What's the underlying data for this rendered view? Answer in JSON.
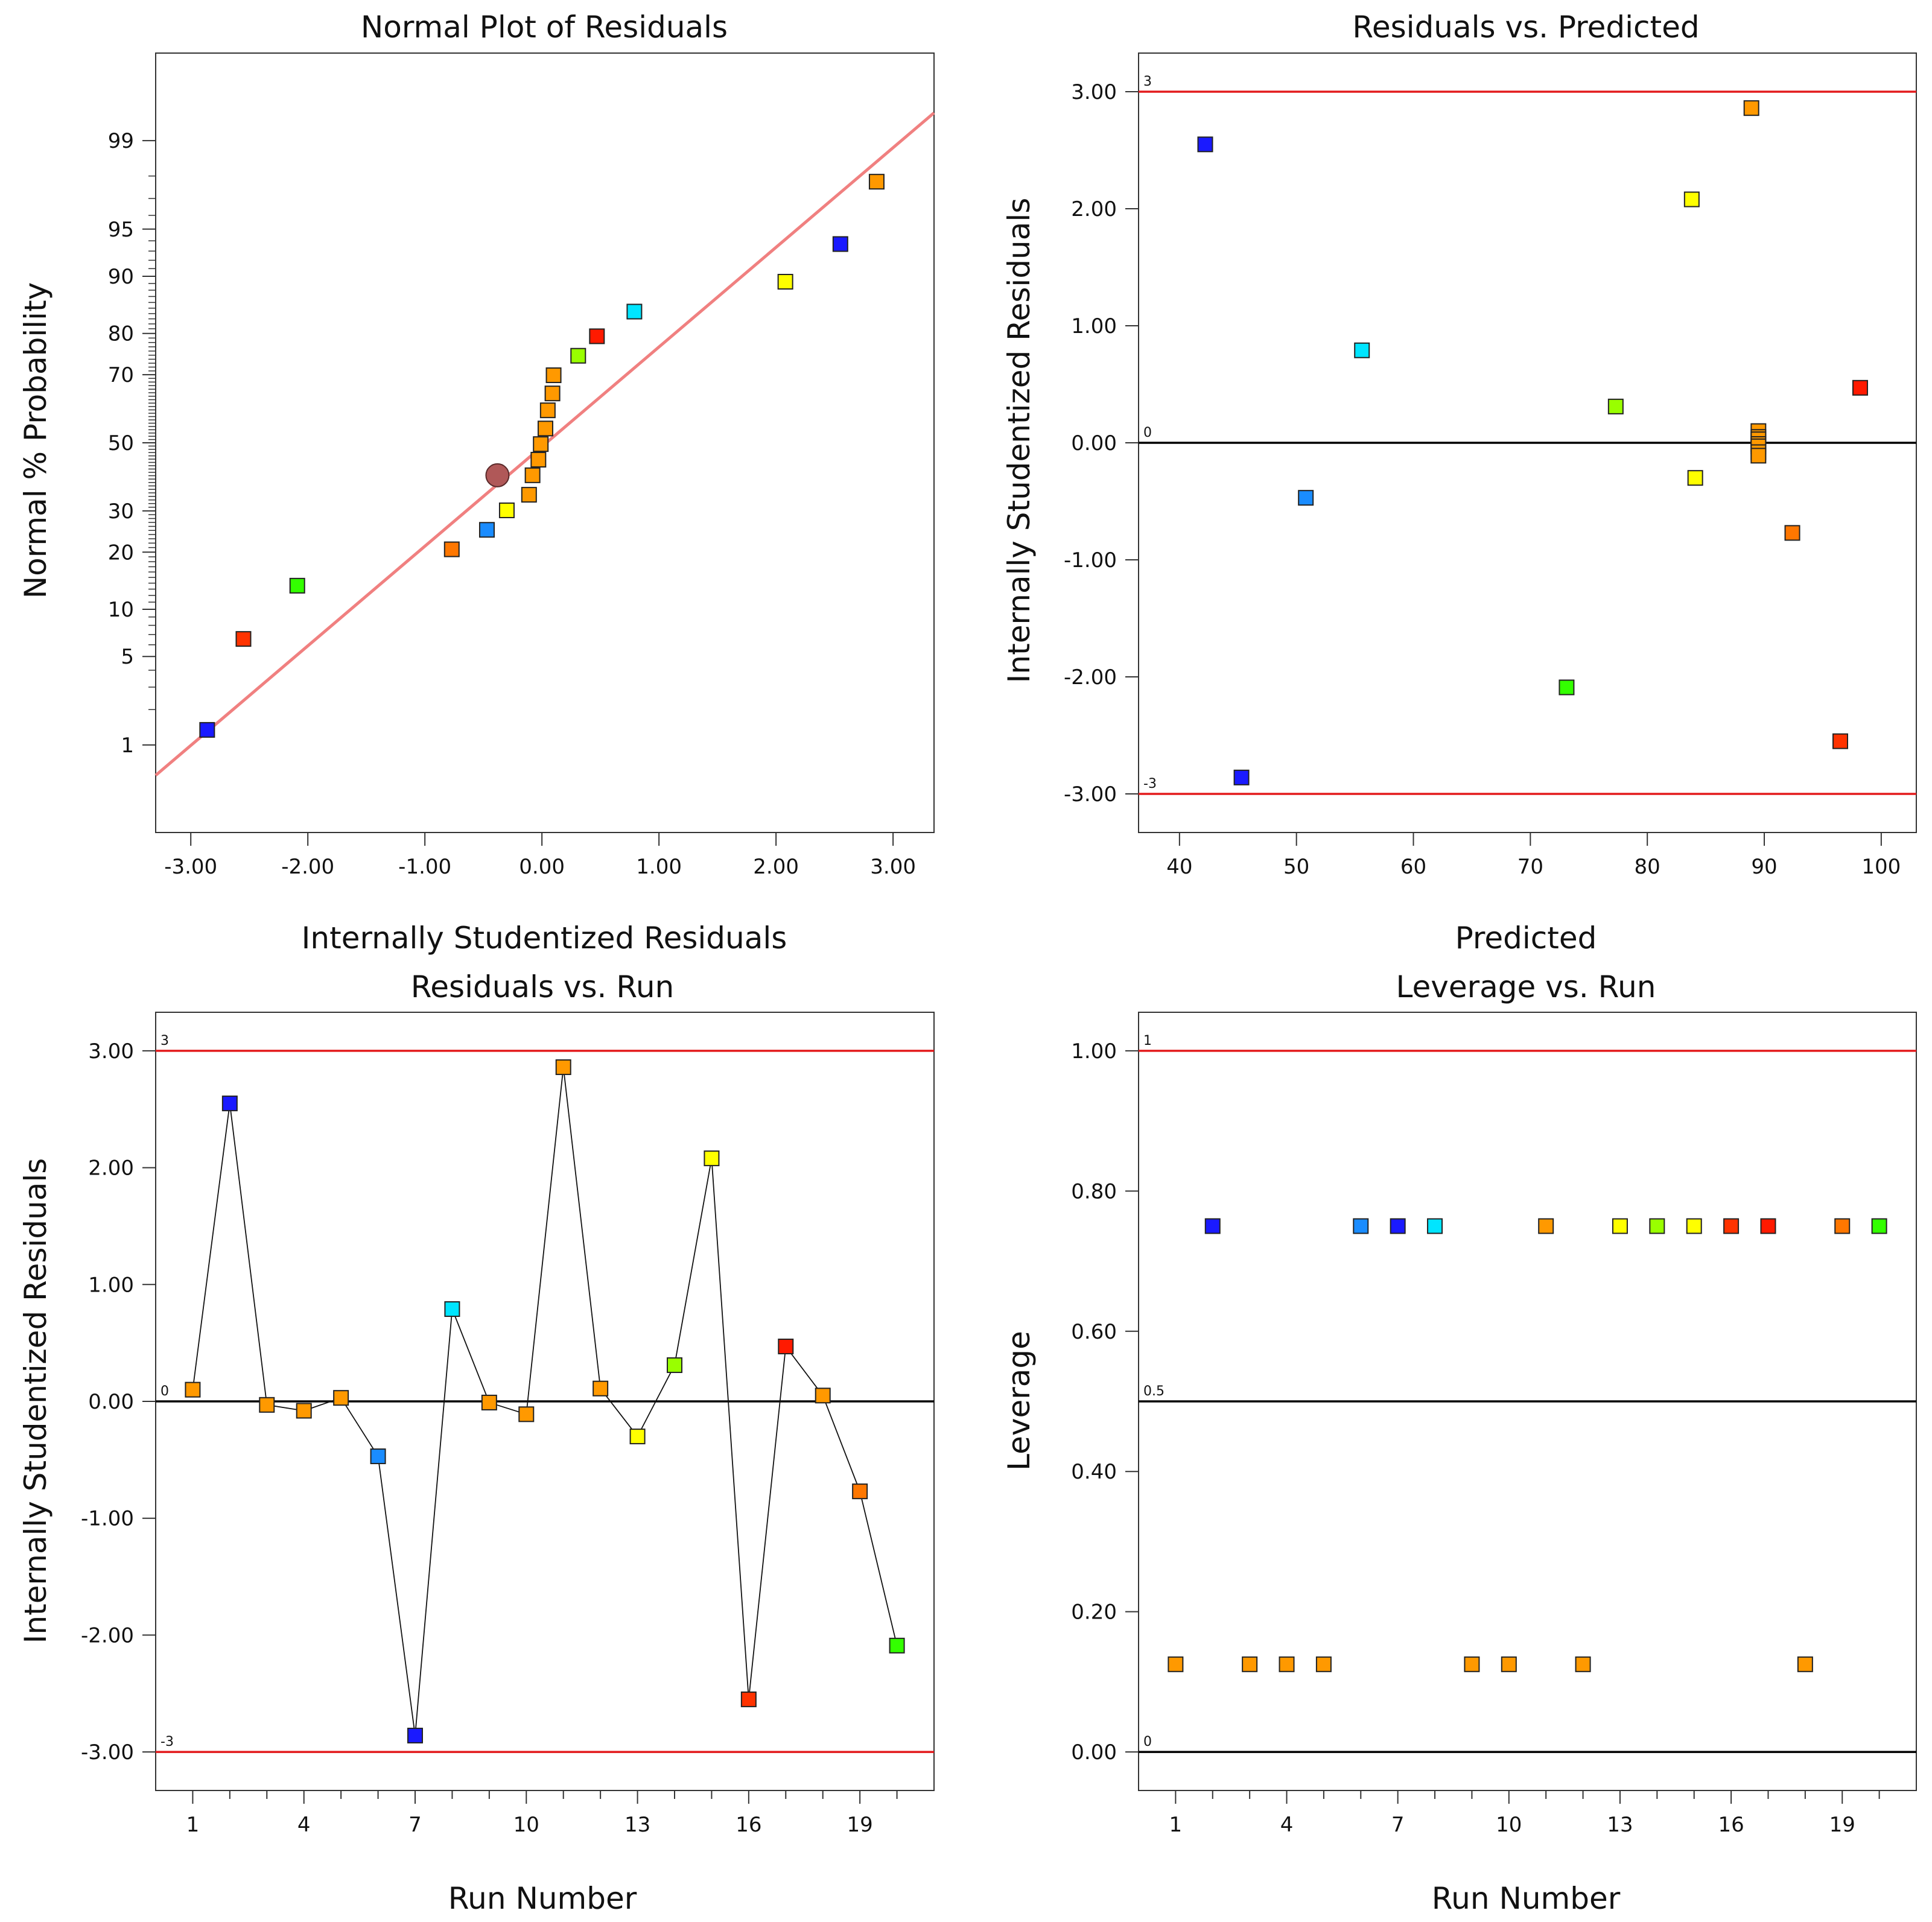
{
  "chart_data": [
    {
      "id": "normal",
      "type": "scatter",
      "title": "Normal Plot of Residuals",
      "xlabel": "Internally Studentized Residuals",
      "ylabel": "Normal % Probability",
      "xlim": [
        -3.3,
        3.35
      ],
      "ylim": [
        -3.0,
        3.0
      ],
      "xticks": [
        -3,
        -2,
        -1,
        0,
        1,
        2,
        3
      ],
      "xticklabels": [
        "-3.00",
        "-2.00",
        "-1.00",
        "0.00",
        "1.00",
        "2.00",
        "3.00"
      ],
      "yticks_z": [
        -2.326,
        -1.645,
        -1.282,
        -0.842,
        -0.524,
        0,
        0.524,
        0.842,
        1.282,
        1.645,
        2.326
      ],
      "yticklabels": [
        "1",
        "5",
        "10",
        "20",
        "30",
        "50",
        "70",
        "80",
        "90",
        "95",
        "99"
      ],
      "fit_line": {
        "x": [
          -3.3,
          3.35
        ],
        "z": [
          -2.56,
          2.54
        ]
      },
      "points": [
        {
          "x": -2.86,
          "z": -2.21,
          "color": "#1a1aff"
        },
        {
          "x": -2.55,
          "z": -1.51,
          "color": "#ff3300"
        },
        {
          "x": -2.09,
          "z": -1.1,
          "color": "#33ff00"
        },
        {
          "x": -0.77,
          "z": -0.82,
          "color": "#ff7700"
        },
        {
          "x": -0.47,
          "z": -0.67,
          "color": "#1a8cff"
        },
        {
          "x": -0.3,
          "z": -0.52,
          "color": "#ffff00"
        },
        {
          "x": -0.11,
          "z": -0.4,
          "color": "#ff9900"
        },
        {
          "x": -0.08,
          "z": -0.25,
          "color": "#ff9900"
        },
        {
          "x": -0.03,
          "z": -0.13,
          "color": "#ff9900"
        },
        {
          "x": -0.01,
          "z": -0.01,
          "color": "#ff9900"
        },
        {
          "x": 0.03,
          "z": 0.11,
          "color": "#ff9900"
        },
        {
          "x": 0.05,
          "z": 0.25,
          "color": "#ff9900"
        },
        {
          "x": 0.09,
          "z": 0.38,
          "color": "#ff9900"
        },
        {
          "x": 0.1,
          "z": 0.52,
          "color": "#ff9900"
        },
        {
          "x": 0.31,
          "z": 0.67,
          "color": "#99ff00"
        },
        {
          "x": 0.47,
          "z": 0.82,
          "color": "#ff1a00"
        },
        {
          "x": 0.79,
          "z": 1.01,
          "color": "#00e5ff"
        },
        {
          "x": 2.08,
          "z": 1.24,
          "color": "#ffff00"
        },
        {
          "x": 2.55,
          "z": 1.53,
          "color": "#1a1aff"
        },
        {
          "x": 2.86,
          "z": 2.01,
          "color": "#ff9900"
        }
      ],
      "highlight": {
        "x": -0.38,
        "z": -0.25,
        "color": "#b05858"
      }
    },
    {
      "id": "pred",
      "type": "scatter",
      "title": "Residuals vs. Predicted",
      "xlabel": "Predicted",
      "ylabel": "Internally Studentized Residuals",
      "xlim": [
        36.5,
        103.0
      ],
      "ylim": [
        -3.33,
        3.33
      ],
      "xticks": [
        40,
        50,
        60,
        70,
        80,
        90,
        100
      ],
      "xticklabels": [
        "40",
        "50",
        "60",
        "70",
        "80",
        "90",
        "100"
      ],
      "yticks": [
        -3,
        -2,
        -1,
        0,
        1,
        2,
        3
      ],
      "yticklabels": [
        "-3.00",
        "-2.00",
        "-1.00",
        "0.00",
        "1.00",
        "2.00",
        "3.00"
      ],
      "ref_lines": [
        {
          "y": 3,
          "label": "3",
          "color": "#e31a1c"
        },
        {
          "y": 0,
          "label": "0",
          "color": "#000000"
        },
        {
          "y": -3,
          "label": "-3",
          "color": "#e31a1c"
        }
      ],
      "points": [
        {
          "x": 42.2,
          "y": 2.55,
          "color": "#1a1aff"
        },
        {
          "x": 45.3,
          "y": -2.86,
          "color": "#1a1aff"
        },
        {
          "x": 50.8,
          "y": -0.47,
          "color": "#1a8cff"
        },
        {
          "x": 55.6,
          "y": 0.79,
          "color": "#00e5ff"
        },
        {
          "x": 73.1,
          "y": -2.09,
          "color": "#33ff00"
        },
        {
          "x": 77.3,
          "y": 0.31,
          "color": "#99ff00"
        },
        {
          "x": 83.8,
          "y": 2.08,
          "color": "#ffff00"
        },
        {
          "x": 84.1,
          "y": -0.3,
          "color": "#ffff00"
        },
        {
          "x": 88.9,
          "y": 2.86,
          "color": "#ff9900"
        },
        {
          "x": 89.5,
          "y": 0.1,
          "color": "#ff9900"
        },
        {
          "x": 89.5,
          "y": 0.05,
          "color": "#ff9900"
        },
        {
          "x": 89.5,
          "y": 0.03,
          "color": "#ff9900"
        },
        {
          "x": 89.5,
          "y": -0.01,
          "color": "#ff9900"
        },
        {
          "x": 89.5,
          "y": -0.03,
          "color": "#ff9900"
        },
        {
          "x": 89.5,
          "y": -0.08,
          "color": "#ff9900"
        },
        {
          "x": 89.5,
          "y": -0.11,
          "color": "#ff9900"
        },
        {
          "x": 92.4,
          "y": -0.77,
          "color": "#ff7700"
        },
        {
          "x": 96.5,
          "y": -2.55,
          "color": "#ff3300"
        },
        {
          "x": 98.2,
          "y": 0.47,
          "color": "#ff1a00"
        }
      ]
    },
    {
      "id": "run",
      "type": "line",
      "title": "Residuals vs. Run",
      "xlabel": "Run Number",
      "ylabel": "Internally Studentized Residuals",
      "xlim": [
        0,
        21
      ],
      "ylim": [
        -3.33,
        3.33
      ],
      "xticks": [
        1,
        4,
        7,
        10,
        13,
        16,
        19
      ],
      "xticklabels": [
        "1",
        "4",
        "7",
        "10",
        "13",
        "16",
        "19"
      ],
      "xminor": [
        2,
        3,
        5,
        6,
        8,
        9,
        11,
        12,
        14,
        15,
        17,
        18,
        20
      ],
      "yticks": [
        -3,
        -2,
        -1,
        0,
        1,
        2,
        3
      ],
      "yticklabels": [
        "-3.00",
        "-2.00",
        "-1.00",
        "0.00",
        "1.00",
        "2.00",
        "3.00"
      ],
      "ref_lines": [
        {
          "y": 3,
          "label": "3",
          "color": "#e31a1c"
        },
        {
          "y": 0,
          "label": "0",
          "color": "#000000"
        },
        {
          "y": -3,
          "label": "-3",
          "color": "#e31a1c"
        }
      ],
      "x": [
        1,
        2,
        3,
        4,
        5,
        6,
        7,
        8,
        9,
        10,
        11,
        12,
        13,
        14,
        15,
        16,
        17,
        18,
        19,
        20
      ],
      "values": [
        0.1,
        2.55,
        -0.03,
        -0.08,
        0.03,
        -0.47,
        -2.86,
        0.79,
        -0.01,
        -0.11,
        2.86,
        0.11,
        -0.3,
        0.31,
        2.08,
        -2.55,
        0.47,
        0.05,
        -0.77,
        -2.09
      ],
      "colors": [
        "#ff9900",
        "#1a1aff",
        "#ff9900",
        "#ff9900",
        "#ff9900",
        "#1a8cff",
        "#1a1aff",
        "#00e5ff",
        "#ff9900",
        "#ff9900",
        "#ff9900",
        "#ff9900",
        "#ffff00",
        "#99ff00",
        "#ffff00",
        "#ff3300",
        "#ff1a00",
        "#ff9900",
        "#ff7700",
        "#33ff00"
      ]
    },
    {
      "id": "lev",
      "type": "scatter",
      "title": "Leverage vs. Run",
      "xlabel": "Run Number",
      "ylabel": "Leverage",
      "xlim": [
        0,
        21
      ],
      "ylim": [
        -0.055,
        1.055
      ],
      "xticks": [
        1,
        4,
        7,
        10,
        13,
        16,
        19
      ],
      "xticklabels": [
        "1",
        "4",
        "7",
        "10",
        "13",
        "16",
        "19"
      ],
      "xminor": [
        2,
        3,
        5,
        6,
        8,
        9,
        11,
        12,
        14,
        15,
        17,
        18,
        20
      ],
      "yticks": [
        0,
        0.2,
        0.4,
        0.6,
        0.8,
        1.0
      ],
      "yticklabels": [
        "0.00",
        "0.20",
        "0.40",
        "0.60",
        "0.80",
        "1.00"
      ],
      "ref_lines": [
        {
          "y": 1,
          "label": "1",
          "color": "#e31a1c"
        },
        {
          "y": 0.5,
          "label": "0.5",
          "color": "#000000"
        },
        {
          "y": 0,
          "label": "0",
          "color": "#000000"
        }
      ],
      "x": [
        1,
        2,
        3,
        4,
        5,
        6,
        7,
        8,
        9,
        10,
        11,
        12,
        13,
        14,
        15,
        16,
        17,
        18,
        19,
        20
      ],
      "values": [
        0.125,
        0.75,
        0.125,
        0.125,
        0.125,
        0.75,
        0.75,
        0.75,
        0.125,
        0.125,
        0.75,
        0.125,
        0.75,
        0.75,
        0.75,
        0.75,
        0.75,
        0.125,
        0.75,
        0.75
      ],
      "colors": [
        "#ff9900",
        "#1a1aff",
        "#ff9900",
        "#ff9900",
        "#ff9900",
        "#1a8cff",
        "#1a1aff",
        "#00e5ff",
        "#ff9900",
        "#ff9900",
        "#ff9900",
        "#ff9900",
        "#ffff00",
        "#99ff00",
        "#ffff00",
        "#ff3300",
        "#ff1a00",
        "#ff9900",
        "#ff7700",
        "#33ff00"
      ]
    }
  ]
}
